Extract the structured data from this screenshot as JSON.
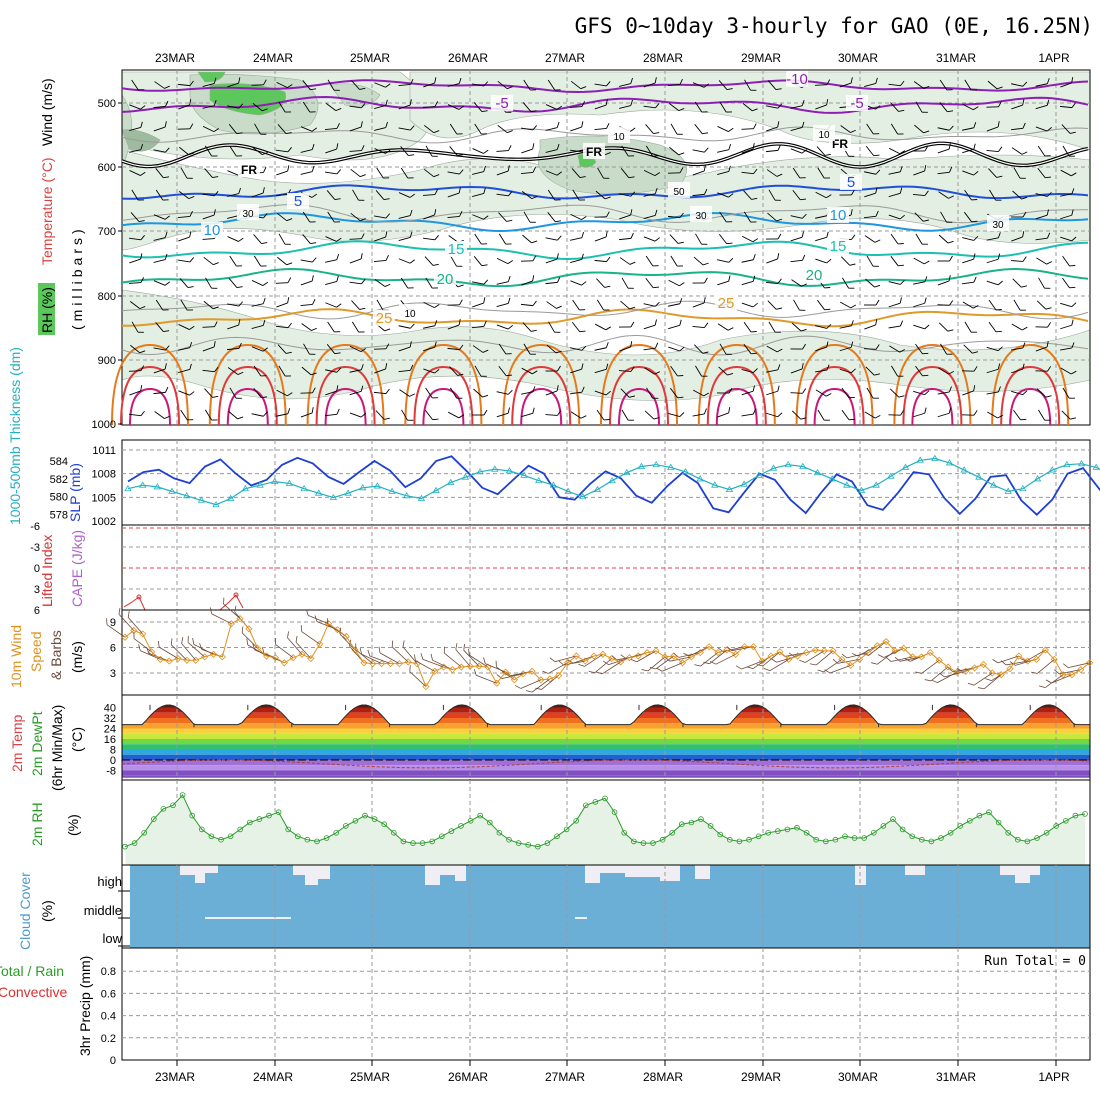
{
  "title": "GFS 0~10day 3-hourly for GAO (0E, 16.25N)",
  "dates": [
    "23MAR",
    "24MAR",
    "25MAR",
    "26MAR",
    "27MAR",
    "28MAR",
    "29MAR",
    "30MAR",
    "31MAR",
    "1APR"
  ],
  "colors": {
    "grid": "#9a9a9a",
    "rh_fill_light": "#e3efe3",
    "rh_fill_mid": "#c9dcc9",
    "rh_fill_dark": "#9fbb9f",
    "rh_fill_green": "#5cc85c",
    "freezing": "#000000",
    "temp_m10": "#8e1fb5",
    "temp_m5": "#8e1fb5",
    "temp_5": "#1f4fd8",
    "temp_10": "#1e96e0",
    "temp_15": "#1cbfb0",
    "temp_20": "#19b28a",
    "temp_25": "#e09a2a",
    "temp_30": "#e57a1c",
    "temp_35": "#e0393a",
    "temp_40": "#c8187a",
    "slp": "#1f3fd0",
    "thickness": "#22b0c0",
    "lifted_index": "#d83030",
    "wind_speed": "#e0901e",
    "barb": "#6a4a3a",
    "rh2m": "#2a9a2a",
    "cloud": "#6baed6",
    "cloud_gap": "#f0eef5",
    "temp_label": "#d94040",
    "rh_label": "#5cc85c"
  },
  "panels": {
    "upper": {
      "ylabel": "(millibars)",
      "label_rh": "RH (%)",
      "label_temp": "Temperature (°C)",
      "label_wind": "Wind (m/s)",
      "yticks": [
        "500",
        "600",
        "700",
        "800",
        "900",
        "1000"
      ],
      "contours": [
        {
          "id": "m10",
          "text": "-10"
        },
        {
          "id": "m5a",
          "text": "-5"
        },
        {
          "id": "m5b",
          "text": "-5"
        },
        {
          "id": "fr1",
          "text": "FR"
        },
        {
          "id": "fr2",
          "text": "FR"
        },
        {
          "id": "fr3",
          "text": "FR"
        },
        {
          "id": "p5a",
          "text": "5"
        },
        {
          "id": "p5b",
          "text": "5"
        },
        {
          "id": "p10a",
          "text": "10"
        },
        {
          "id": "p10b",
          "text": "10"
        },
        {
          "id": "p15a",
          "text": "15"
        },
        {
          "id": "p15b",
          "text": "15"
        },
        {
          "id": "p20a",
          "text": "20"
        },
        {
          "id": "p20b",
          "text": "20"
        },
        {
          "id": "p25a",
          "text": "25"
        },
        {
          "id": "p25b",
          "text": "25"
        },
        {
          "id": "rh30a",
          "text": "30"
        },
        {
          "id": "rh30b",
          "text": "30"
        },
        {
          "id": "rh30c",
          "text": "30"
        },
        {
          "id": "rh50a",
          "text": "50"
        },
        {
          "id": "rh10a",
          "text": "10"
        },
        {
          "id": "rh10b",
          "text": "10"
        },
        {
          "id": "rh10c",
          "text": "10"
        }
      ]
    },
    "slp": {
      "label_left": "1000-500mb Thickness (dm)",
      "label_right": "SLP (mb)",
      "yticks_left": [
        "584",
        "582",
        "580",
        "578"
      ],
      "yticks_right": [
        "1011",
        "1008",
        "1005",
        "1002"
      ]
    },
    "cape": {
      "label_left": "Lifted Index",
      "label_right": "CAPE (J/kg)",
      "yticks": [
        "-6",
        "-3",
        "0",
        "3",
        "6"
      ]
    },
    "wind10": {
      "label_a": "10m Wind",
      "label_b": "Speed",
      "label_c": "& Barbs",
      "units": "(m/s)",
      "yticks": [
        "9",
        "6",
        "3"
      ]
    },
    "temp2m": {
      "label_a": "2m Temp",
      "label_b": "2m DewPt",
      "label_c": "(6hr Min/Max)",
      "units": "(°C)",
      "yticks": [
        "40",
        "32",
        "24",
        "16",
        "8",
        "0",
        "-8"
      ]
    },
    "rh2m": {
      "label": "2m RH",
      "units": "(%)"
    },
    "cloud": {
      "label": "Cloud Cover",
      "units": "(%)",
      "levels": [
        "high",
        "middle",
        "low"
      ]
    },
    "precip": {
      "label_a": "Total / Rain",
      "label_b": "Convective",
      "label_c": "3hr Precip (mm)",
      "yticks": [
        "0.8",
        "0.6",
        "0.4",
        "0.2",
        "0"
      ],
      "run_total": "Run Total = 0"
    }
  },
  "chart_data": [
    {
      "type": "line",
      "title": "SLP (mb)",
      "x": "3-hourly steps from 22MAR 12Z to 1APR 06Z",
      "series": [
        {
          "name": "SLP (mb)",
          "values": [
            1007.0,
            1008.2,
            1008.5,
            1007.4,
            1006.8,
            1008.9,
            1009.8,
            1008.0,
            1006.5,
            1007.2,
            1009.1,
            1010.0,
            1009.3,
            1007.6,
            1006.7,
            1008.2,
            1009.6,
            1008.4,
            1006.3,
            1007.4,
            1009.6,
            1010.2,
            1008.3,
            1006.2,
            1005.4,
            1007.2,
            1009.0,
            1008.0,
            1005.0,
            1004.7,
            1006.7,
            1008.3,
            1007.4,
            1005.2,
            1004.3,
            1006.4,
            1008.1,
            1006.8,
            1003.6,
            1003.1,
            1005.6,
            1008.0,
            1007.2,
            1004.7,
            1003.0,
            1005.6,
            1007.9,
            1007.0,
            1004.0,
            1003.4,
            1005.6,
            1008.2,
            1007.9,
            1004.9,
            1002.9,
            1004.8,
            1007.6,
            1007.8,
            1004.6,
            1002.8,
            1004.7,
            1008.0,
            1008.7,
            1006.2,
            1003.8,
            1005.6,
            1007.9,
            1008.3,
            1005.8,
            1003.7,
            1005.2,
            1007.6,
            1008.0,
            1005.7,
            1004.1,
            1006.0
          ]
        }
      ]
    },
    {
      "type": "line",
      "title": "1000-500mb Thickness (dm)",
      "series": [
        {
          "name": "1000-500mb Thickness (dm)",
          "values": [
            580.9,
            581.3,
            581.1,
            580.6,
            580.1,
            579.6,
            579.1,
            579.8,
            580.9,
            581.3,
            581.7,
            581.5,
            580.9,
            580.4,
            579.9,
            580.4,
            581.0,
            581.2,
            580.6,
            580.1,
            579.8,
            580.7,
            581.6,
            582.2,
            582.8,
            583.1,
            582.9,
            582.4,
            581.8,
            581.3,
            580.6,
            580.0,
            580.8,
            581.8,
            582.7,
            583.4,
            583.6,
            583.3,
            582.8,
            582.0,
            581.3,
            580.8,
            581.4,
            582.4,
            583.2,
            583.6,
            583.4,
            582.7,
            582.0,
            581.3,
            580.7,
            581.3,
            582.3,
            583.3,
            584.1,
            584.3,
            583.8,
            583.0,
            582.2,
            581.3,
            580.6,
            580.9,
            582.0,
            583.0,
            583.6,
            583.7,
            583.3,
            582.5,
            581.6,
            580.8,
            581.1,
            582.0,
            582.8,
            583.4,
            583.6,
            583.2,
            582.2,
            581.2,
            580.4
          ]
        }
      ]
    },
    {
      "type": "line",
      "title": "10m Wind Speed (m/s)",
      "series": [
        {
          "name": "10m Wind Speed (m/s)",
          "values": [
            7.2,
            8.0,
            7.6,
            5.5,
            4.6,
            4.4,
            4.7,
            4.5,
            4.5,
            4.9,
            5.2,
            4.9,
            8.8,
            9.4,
            8.2,
            5.9,
            5.0,
            4.8,
            4.2,
            4.8,
            5.2,
            4.7,
            6.4,
            8.8,
            8.1,
            7.3,
            5.7,
            4.2,
            4.1,
            4.1,
            4.1,
            4.1,
            4.3,
            4.1,
            1.4,
            3.2,
            3.7,
            3.4,
            3.7,
            3.8,
            3.8,
            3.7,
            1.8,
            3.1,
            2.2,
            2.9,
            3.2,
            2.2,
            2.3,
            2.7,
            4.2,
            5.0,
            4.4,
            5.0,
            5.2,
            4.7,
            4.3,
            4.8,
            5.0,
            5.4,
            5.6,
            4.9,
            5.0,
            4.2,
            4.9,
            5.4,
            6.1,
            5.4,
            5.7,
            5.2,
            6.1,
            6.1,
            4.4,
            5.0,
            5.5,
            4.6,
            5.0,
            5.4,
            5.7,
            5.6,
            5.6,
            4.6,
            3.9,
            4.6,
            5.4,
            6.2,
            6.7,
            5.6,
            5.9,
            4.9,
            4.9,
            5.4,
            4.5,
            3.7,
            3.1,
            3.2,
            3.6,
            4.0,
            3.0,
            2.8,
            3.5,
            5.0,
            4.4,
            4.6,
            5.7,
            4.6,
            2.8,
            2.8,
            3.4,
            4.2
          ]
        }
      ]
    },
    {
      "type": "line",
      "title": "2m RH (%)",
      "series": [
        {
          "name": "2m RH (%)",
          "values": [
            12,
            14,
            20,
            28,
            34,
            36,
            42,
            30,
            22,
            18,
            16,
            18,
            22,
            26,
            28,
            30,
            32,
            22,
            18,
            16,
            15,
            17,
            20,
            24,
            27,
            30,
            28,
            25,
            20,
            15,
            14,
            14,
            15,
            18,
            21,
            24,
            27,
            30,
            26,
            20,
            16,
            14,
            13,
            12,
            14,
            18,
            22,
            27,
            36,
            38,
            40,
            32,
            20,
            15,
            14,
            14,
            16,
            20,
            25,
            26,
            28,
            24,
            19,
            16,
            15,
            16,
            18,
            20,
            21,
            22,
            23,
            20,
            16,
            15,
            16,
            18,
            17,
            17,
            20,
            24,
            28,
            22,
            18,
            16,
            15,
            17,
            20,
            24,
            27,
            30,
            32,
            26,
            20,
            16,
            15,
            17,
            20,
            24,
            27,
            30,
            31
          ]
        }
      ]
    },
    {
      "type": "line",
      "title": "2m Temp (°C)",
      "series": [
        {
          "name": "2m Temp (°C) daily max",
          "values": [
            42,
            42,
            42,
            42,
            42,
            42,
            42,
            42,
            42,
            42
          ]
        },
        {
          "name": "2m Temp (°C) daily min",
          "values": [
            26,
            26,
            26,
            26,
            26,
            26,
            26,
            26,
            26,
            26
          ]
        }
      ],
      "ylim": [
        -12,
        44
      ]
    },
    {
      "type": "bar",
      "title": "3hr Precip (mm)",
      "ylim": [
        0,
        1
      ],
      "values": []
    }
  ]
}
